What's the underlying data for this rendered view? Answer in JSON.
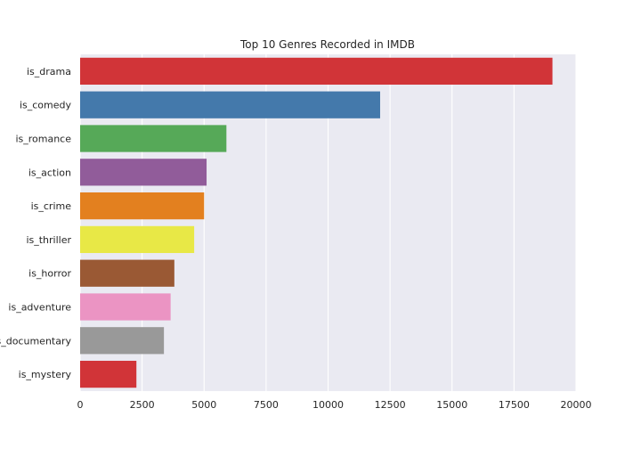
{
  "chart_data": {
    "type": "bar",
    "orientation": "horizontal",
    "title": "Top 10 Genres Recorded in IMDB",
    "xlabel": "",
    "ylabel": "",
    "xlim": [
      0,
      20000
    ],
    "x_ticks": [
      0,
      2500,
      5000,
      7500,
      10000,
      12500,
      15000,
      17500,
      20000
    ],
    "grid": true,
    "categories": [
      "is_drama",
      "is_comedy",
      "is_romance",
      "is_action",
      "is_crime",
      "is_thriller",
      "is_horror",
      "is_adventure",
      "is_documentary",
      "is_mystery"
    ],
    "values": [
      19050,
      12100,
      5900,
      5100,
      5000,
      4600,
      3800,
      3650,
      3380,
      2270
    ],
    "colors": [
      "#d13438",
      "#4479ab",
      "#56a958",
      "#915c9a",
      "#e3801f",
      "#e8e846",
      "#9a5934",
      "#eb94c3",
      "#999999",
      "#d13438"
    ],
    "background": "#eaeaf2",
    "grid_color": "#ffffff"
  }
}
